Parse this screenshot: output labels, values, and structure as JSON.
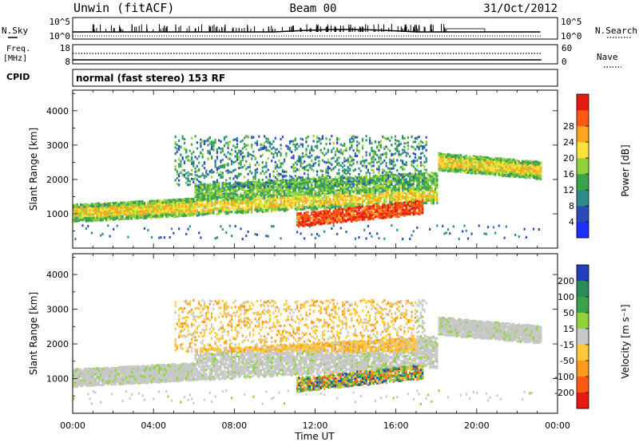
{
  "header": {
    "station": "Unwin (fitACF)",
    "beam": "Beam 00",
    "date": "31/Oct/2012"
  },
  "noise_panel": {
    "left_label": "N.Sky",
    "right_label": "N.Search",
    "ticks_left": [
      "10^5",
      "10^0"
    ],
    "ticks_right": [
      "10^5",
      "10^0"
    ]
  },
  "freq_panel": {
    "left_label_line1": "Freq.",
    "left_label_line2": "[MHz]",
    "left_ticks": [
      "18",
      "8"
    ],
    "right_label": "Nave",
    "right_ticks": [
      "60",
      "0"
    ]
  },
  "cpid_panel": {
    "label": "CPID",
    "text": "normal (fast stereo) 153 RF"
  },
  "chart_data": [
    {
      "type": "heatmap",
      "title": "",
      "ylabel": "Slant Range [km]",
      "y_ticks": [
        "1000",
        "2000",
        "3000",
        "4000"
      ],
      "ylim": [
        0,
        4600
      ],
      "xlim_hours": [
        0,
        24
      ],
      "colorbar_label": "Power [dB]",
      "colorbar_ticks": [
        "4",
        "8",
        "12",
        "16",
        "20",
        "24",
        "28"
      ],
      "colorbar_colors": [
        "#1f2fff",
        "#2a4bb8",
        "#2f8a8a",
        "#3aa24a",
        "#8fd23a",
        "#ffe23a",
        "#ffa41f",
        "#ff5a14",
        "#e61a10"
      ]
    },
    {
      "type": "heatmap",
      "title": "",
      "ylabel": "Slant Range [km]",
      "y_ticks": [
        "1000",
        "2000",
        "3000",
        "4000"
      ],
      "ylim": [
        0,
        4600
      ],
      "xlim_hours": [
        0,
        24
      ],
      "colorbar_label": "Velocity [m s⁻¹]",
      "colorbar_ticks": [
        "200",
        "100",
        "50",
        "15",
        "-15",
        "-50",
        "-100",
        "-200"
      ],
      "colorbar_colors": [
        "#1f3fbf",
        "#2a8a5a",
        "#3aa24a",
        "#8fd23a",
        "#c8c8c8",
        "#ffc83a",
        "#ff9a1f",
        "#ff5a14",
        "#e61a10"
      ]
    }
  ],
  "x_axis": {
    "ticks": [
      "00:00",
      "04:00",
      "08:00",
      "12:00",
      "16:00",
      "20:00",
      "00:00"
    ],
    "label": "Time UT"
  }
}
